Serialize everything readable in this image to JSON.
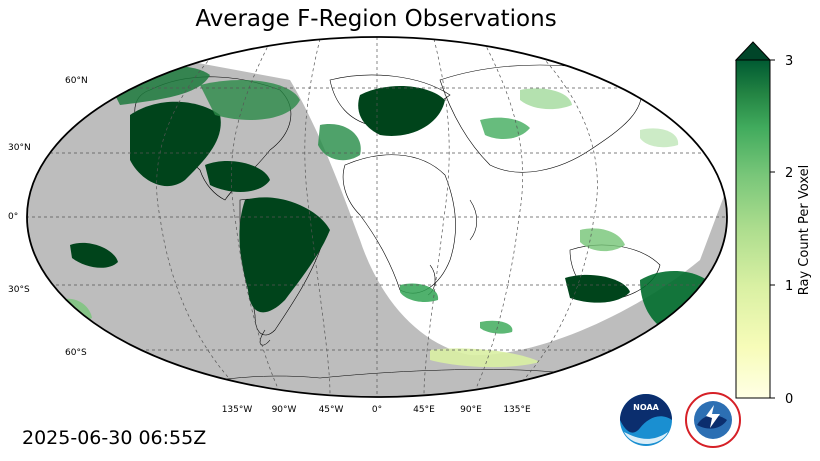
{
  "title": "Average F-Region Observations",
  "timestamp": "2025-06-30 06:55Z",
  "lat_labels": [
    "60°N",
    "30°N",
    "0°",
    "30°S",
    "60°S"
  ],
  "lon_labels": [
    "135°W",
    "90°W",
    "45°W",
    "0°",
    "45°E",
    "90°E",
    "135°E"
  ],
  "colorbar": {
    "label": "Ray Count Per Voxel",
    "ticks": [
      "0",
      "1",
      "2",
      "3"
    ],
    "min": 0,
    "max": 3,
    "extend": "max",
    "colormap": "YlGn",
    "low_color": "#ffffe5",
    "high_color": "#004529"
  },
  "colors": {
    "night_shade": "#bdbdbd",
    "gridline": "#555555",
    "coastline": "#000000"
  },
  "logos": [
    {
      "name": "NOAA",
      "icon": "noaa-logo"
    },
    {
      "name": "National Weather Service",
      "icon": "nws-logo"
    }
  ]
}
